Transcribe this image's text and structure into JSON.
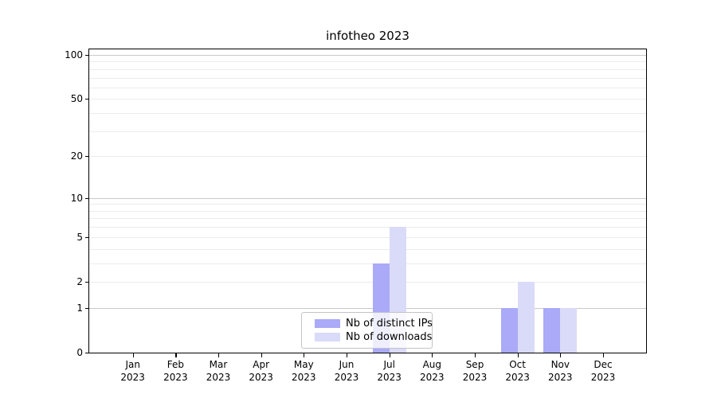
{
  "figure": {
    "background": "#ffffff"
  },
  "chart_data": {
    "type": "bar",
    "title": "infotheo 2023",
    "categories": [
      "Jan",
      "Feb",
      "Mar",
      "Apr",
      "May",
      "Jun",
      "Jul",
      "Aug",
      "Sep",
      "Oct",
      "Nov",
      "Dec"
    ],
    "year_label": "2023",
    "series": [
      {
        "name": "Nb of distinct IPs",
        "color": "#aaaaf8",
        "values": [
          0,
          0,
          0,
          0,
          0,
          0,
          3,
          0,
          0,
          1,
          1,
          0
        ]
      },
      {
        "name": "Nb of downloads",
        "color": "#dadaf9",
        "values": [
          0,
          0,
          0,
          0,
          0,
          0,
          6,
          0,
          0,
          2,
          1,
          0
        ]
      }
    ],
    "xlabel": "",
    "ylabel": "",
    "yscale": "log1p",
    "ylim": [
      0,
      109
    ],
    "yticks": [
      0,
      1,
      2,
      5,
      10,
      20,
      50,
      100
    ],
    "gridlines_major": [
      1,
      10,
      100
    ],
    "gridlines_minor": [
      2,
      3,
      4,
      5,
      6,
      7,
      8,
      9,
      20,
      30,
      40,
      50,
      60,
      70,
      80,
      90
    ],
    "legend_position": "lower center",
    "grid": true,
    "colors": {
      "grid_major": "#c9c9c9",
      "grid_minor": "#ececec",
      "spine": "#000000",
      "text": "#000000"
    }
  }
}
